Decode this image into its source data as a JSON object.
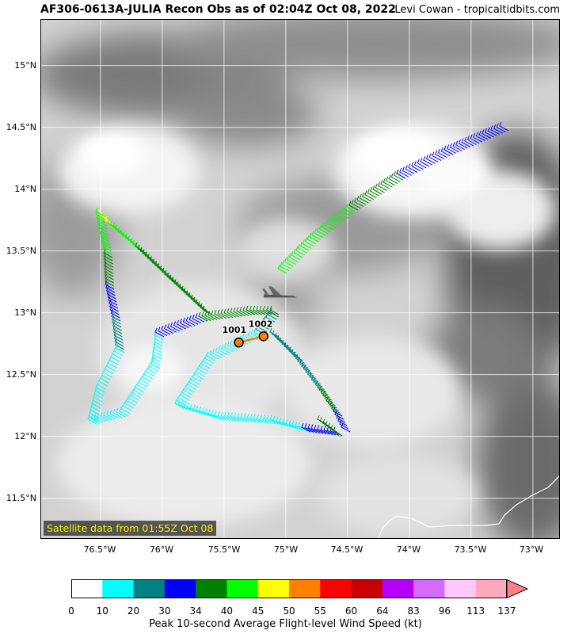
{
  "header": {
    "title": "AF306-0613A-JULIA Recon Obs as of 02:04Z Oct 08, 2022",
    "credit": "Levi Cowan - tropicaltidbits.com"
  },
  "map": {
    "lat_labels": [
      "15°N",
      "14.5°N",
      "14°N",
      "13.5°N",
      "13°N",
      "12.5°N",
      "12°N",
      "11.5°N"
    ],
    "lon_labels": [
      "76.5°W",
      "76°W",
      "75.5°W",
      "75°W",
      "74.5°W",
      "74°W",
      "73.5°W",
      "73°W"
    ],
    "satellite_note": "Satellite data from 01:55Z Oct 08",
    "dropsondes": [
      {
        "label": "1001",
        "lat": 12.76,
        "lon": -75.38
      },
      {
        "label": "1002",
        "lat": 12.81,
        "lon": -75.18
      }
    ],
    "aircraft_icon": "airplane-icon",
    "aircraft": {
      "lat": 13.15,
      "lon": -75.05
    },
    "coastline_color": "#ffffff"
  },
  "colorbar": {
    "label": "Peak 10-second Average Flight-level Wind Speed (kt)",
    "ticks": [
      "0",
      "10",
      "20",
      "30",
      "34",
      "40",
      "45",
      "50",
      "55",
      "60",
      "64",
      "83",
      "96",
      "113",
      "137"
    ],
    "colors": [
      "#ffffff",
      "#00ffff",
      "#008080",
      "#0000ff",
      "#008000",
      "#00ff00",
      "#ffff00",
      "#ff8000",
      "#ff0000",
      "#c80000",
      "#b400ff",
      "#d46aff",
      "#ffc8ff",
      "#ffa8c0"
    ],
    "extend_color": "#ff8080"
  }
}
